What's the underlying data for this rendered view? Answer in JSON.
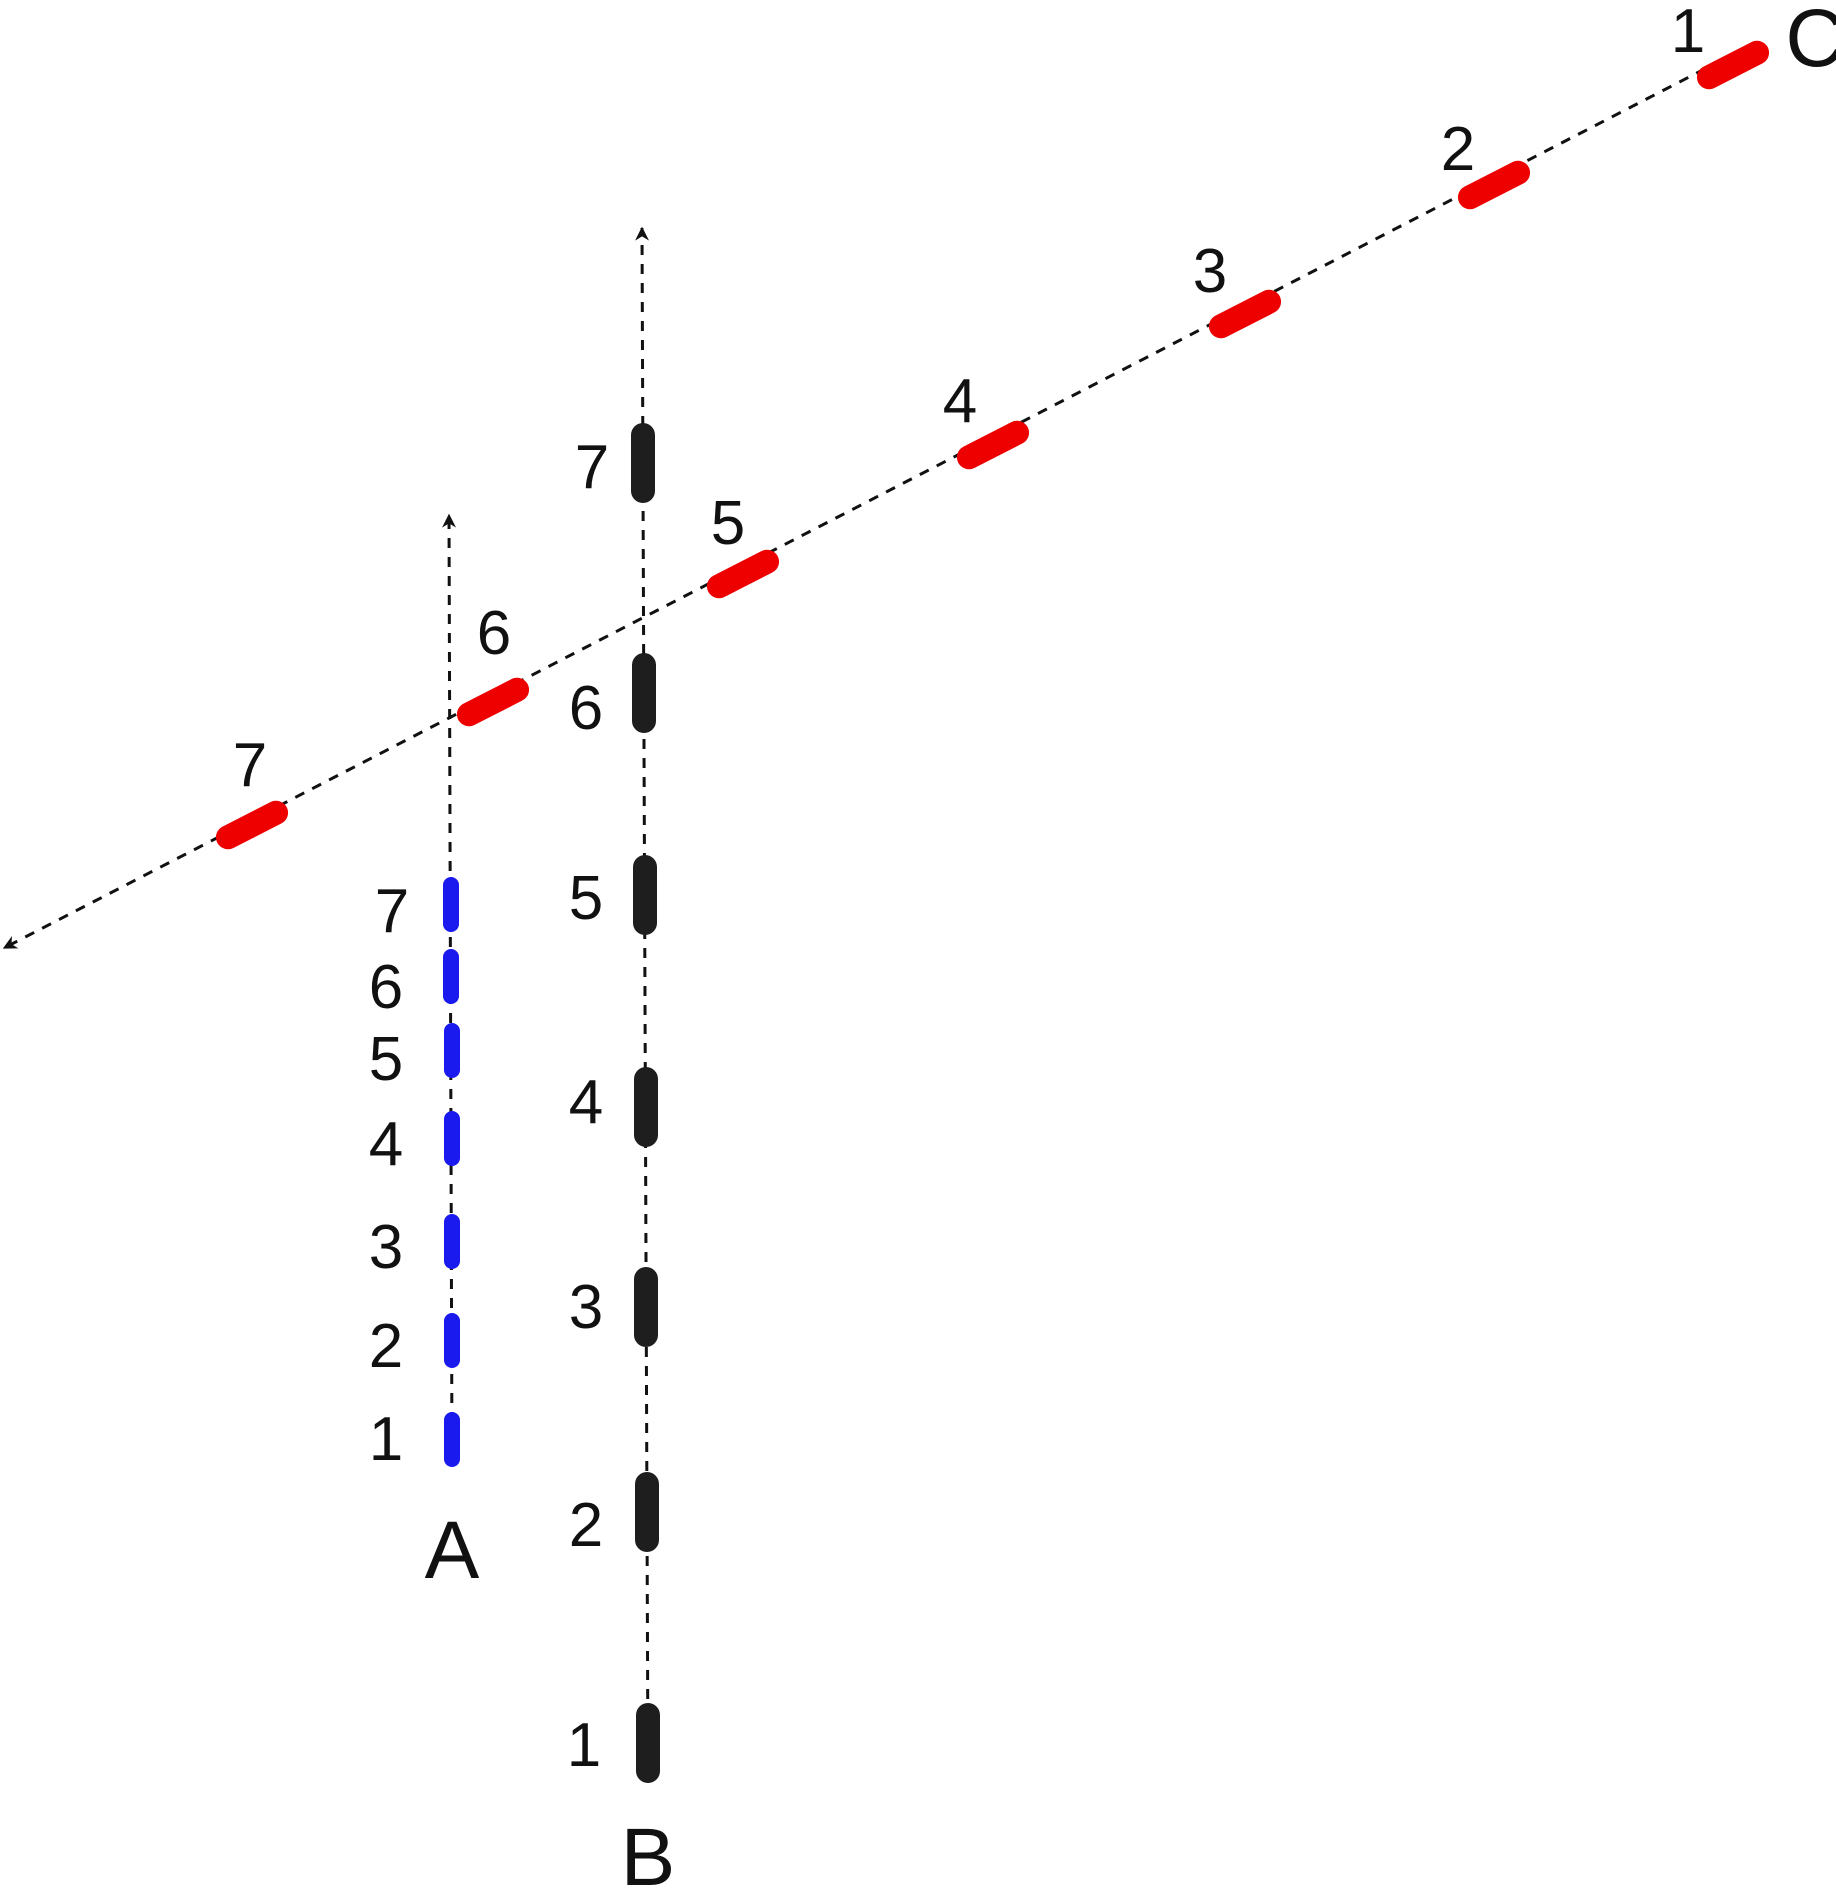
{
  "colors": {
    "ship_a": "#1a1aee",
    "ship_b": "#1e1e1e",
    "ship_c": "#ee0000",
    "track": "#111111"
  },
  "vessels": [
    {
      "id": "a",
      "label": "A",
      "color_key": "ship_a",
      "positions": [
        "1",
        "2",
        "3",
        "4",
        "5",
        "6",
        "7"
      ]
    },
    {
      "id": "b",
      "label": "B",
      "color_key": "ship_b",
      "positions": [
        "1",
        "2",
        "3",
        "4",
        "5",
        "6",
        "7"
      ]
    },
    {
      "id": "c",
      "label": "C",
      "color_key": "ship_c",
      "positions": [
        "1",
        "2",
        "3",
        "4",
        "5",
        "6",
        "7"
      ]
    }
  ]
}
